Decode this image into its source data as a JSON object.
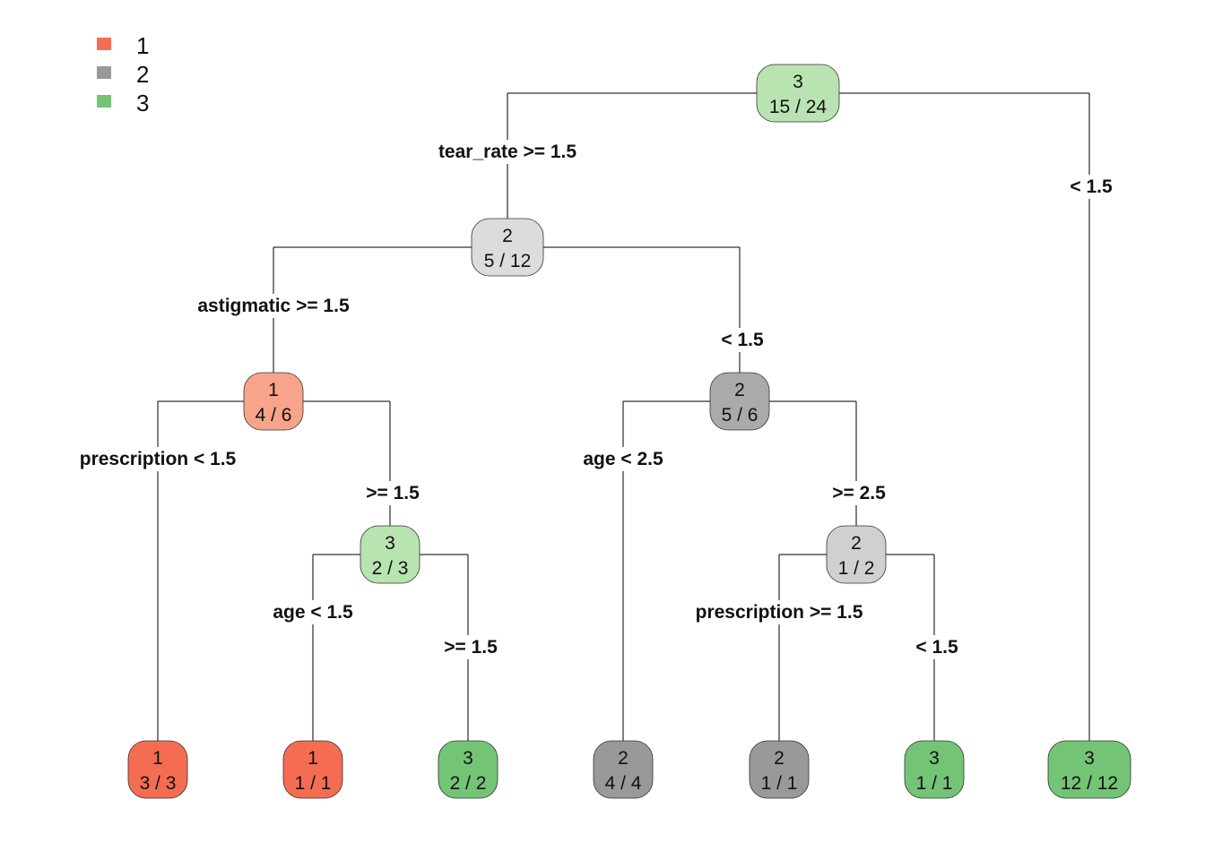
{
  "colors": {
    "class1": "#f46d52",
    "class2": "#999999",
    "class3": "#74c476"
  },
  "legend": [
    {
      "label": "1",
      "color": "#f46d52"
    },
    {
      "label": "2",
      "color": "#999999"
    },
    {
      "label": "3",
      "color": "#74c476"
    }
  ],
  "nodes": [
    {
      "id": "root",
      "cls": "3",
      "counts": "15 / 24",
      "fill": "#b9e3b0"
    },
    {
      "id": "n2",
      "cls": "2",
      "counts": "5 / 12",
      "fill": "#dcdcdc"
    },
    {
      "id": "n4",
      "cls": "1",
      "counts": "4 / 6",
      "fill": "#f7a48b"
    },
    {
      "id": "n5",
      "cls": "3",
      "counts": "2 / 3",
      "fill": "#b9e3b0"
    },
    {
      "id": "n3",
      "cls": "2",
      "counts": "5 / 6",
      "fill": "#aaaaaa"
    },
    {
      "id": "n7",
      "cls": "2",
      "counts": "1 / 2",
      "fill": "#d0d0d0"
    },
    {
      "id": "leaf1",
      "cls": "1",
      "counts": "3 / 3",
      "fill": "#f46d52"
    },
    {
      "id": "leaf2",
      "cls": "1",
      "counts": "1 / 1",
      "fill": "#f46d52"
    },
    {
      "id": "leaf3",
      "cls": "3",
      "counts": "2 / 2",
      "fill": "#74c476"
    },
    {
      "id": "leaf4",
      "cls": "2",
      "counts": "4 / 4",
      "fill": "#999999"
    },
    {
      "id": "leaf5",
      "cls": "2",
      "counts": "1 / 1",
      "fill": "#999999"
    },
    {
      "id": "leaf6",
      "cls": "3",
      "counts": "1 / 1",
      "fill": "#74c476"
    },
    {
      "id": "leaf7",
      "cls": "3",
      "counts": "12 / 12",
      "fill": "#74c476"
    }
  ],
  "splits": [
    {
      "id": "s_root_left",
      "label": "tear_rate >= 1.5"
    },
    {
      "id": "s_root_right",
      "label": "< 1.5"
    },
    {
      "id": "s_n2_left",
      "label": "astigmatic >= 1.5"
    },
    {
      "id": "s_n2_right",
      "label": "< 1.5"
    },
    {
      "id": "s_n4_left",
      "label": "prescription < 1.5"
    },
    {
      "id": "s_n4_right",
      "label": ">= 1.5"
    },
    {
      "id": "s_n5_left",
      "label": "age < 1.5"
    },
    {
      "id": "s_n5_right",
      "label": ">= 1.5"
    },
    {
      "id": "s_n3_left",
      "label": "age < 2.5"
    },
    {
      "id": "s_n3_right",
      "label": ">= 2.5"
    },
    {
      "id": "s_n7_left",
      "label": "prescription >= 1.5"
    },
    {
      "id": "s_n7_right",
      "label": "< 1.5"
    }
  ]
}
